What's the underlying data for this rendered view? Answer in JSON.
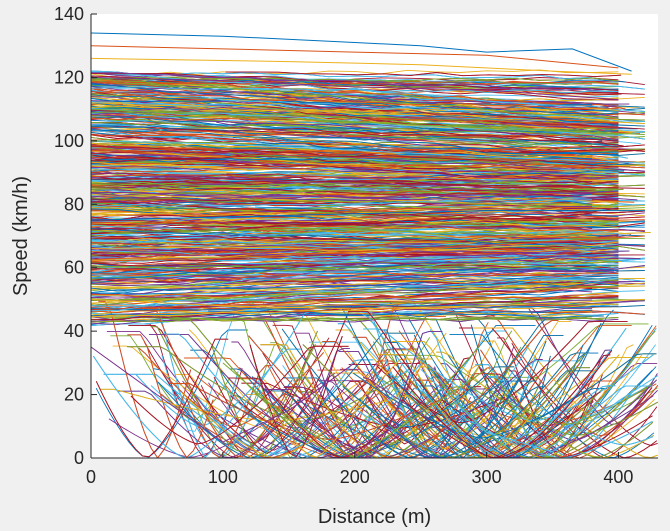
{
  "chart_data": {
    "type": "line",
    "title": "",
    "xlabel": "Distance (m)",
    "ylabel": "Speed (km/h)",
    "xlim": [
      0,
      430
    ],
    "ylim": [
      0,
      140
    ],
    "xticks": [
      0,
      100,
      200,
      300,
      400
    ],
    "xtick_labels": [
      "0",
      "100",
      "200",
      "300",
      "400"
    ],
    "yticks": [
      0,
      20,
      40,
      60,
      80,
      100,
      120,
      140
    ],
    "ytick_labels": [
      "0",
      "20",
      "40",
      "60",
      "80",
      "100",
      "120",
      "140"
    ],
    "grid": false,
    "legend": "none",
    "series_count_estimate": 2500,
    "speed_distribution_note": "dense band of trajectories between ~45 and ~115 km/h, sparser between 0 and 45 km/h with many stop-and-go curves reaching 0",
    "series_colors": [
      "#0072bd",
      "#d95319",
      "#edb120",
      "#7e2f8e",
      "#77ac30",
      "#4dbeee",
      "#a2142f"
    ],
    "series": [
      {
        "x": [
          0,
          100,
          200,
          250,
          300,
          365,
          410
        ],
        "y": [
          134,
          133,
          131,
          130,
          128,
          129,
          122
        ]
      },
      {
        "x": [
          0,
          100,
          200,
          300,
          400
        ],
        "y": [
          130,
          129,
          128,
          127,
          123
        ]
      },
      {
        "x": [
          0,
          150,
          250,
          350,
          410
        ],
        "y": [
          126,
          125,
          124,
          122,
          121
        ]
      },
      {
        "x": [
          0,
          100,
          200,
          300,
          400
        ],
        "y": [
          120,
          119,
          117,
          116,
          113
        ]
      },
      {
        "x": [
          0,
          100,
          200,
          300,
          420
        ],
        "y": [
          110,
          108,
          106,
          104,
          102
        ]
      },
      {
        "x": [
          0,
          100,
          200,
          300,
          420
        ],
        "y": [
          100,
          99,
          97,
          95,
          93
        ]
      },
      {
        "x": [
          0,
          100,
          200,
          300,
          420
        ],
        "y": [
          88,
          88,
          87,
          86,
          85
        ]
      },
      {
        "x": [
          0,
          100,
          200,
          300,
          420
        ],
        "y": [
          75,
          76,
          77,
          78,
          78
        ]
      },
      {
        "x": [
          0,
          100,
          200,
          300,
          420
        ],
        "y": [
          62,
          63,
          65,
          67,
          70
        ]
      },
      {
        "x": [
          0,
          100,
          200,
          300,
          420
        ],
        "y": [
          50,
          48,
          47,
          48,
          50
        ]
      },
      {
        "x": [
          0,
          50,
          100,
          150,
          200
        ],
        "y": [
          35,
          20,
          5,
          15,
          30
        ]
      },
      {
        "x": [
          100,
          150,
          200,
          250,
          300
        ],
        "y": [
          30,
          12,
          0,
          14,
          28
        ]
      },
      {
        "x": [
          250,
          300,
          350,
          400,
          430
        ],
        "y": [
          28,
          8,
          2,
          18,
          26
        ]
      }
    ]
  }
}
